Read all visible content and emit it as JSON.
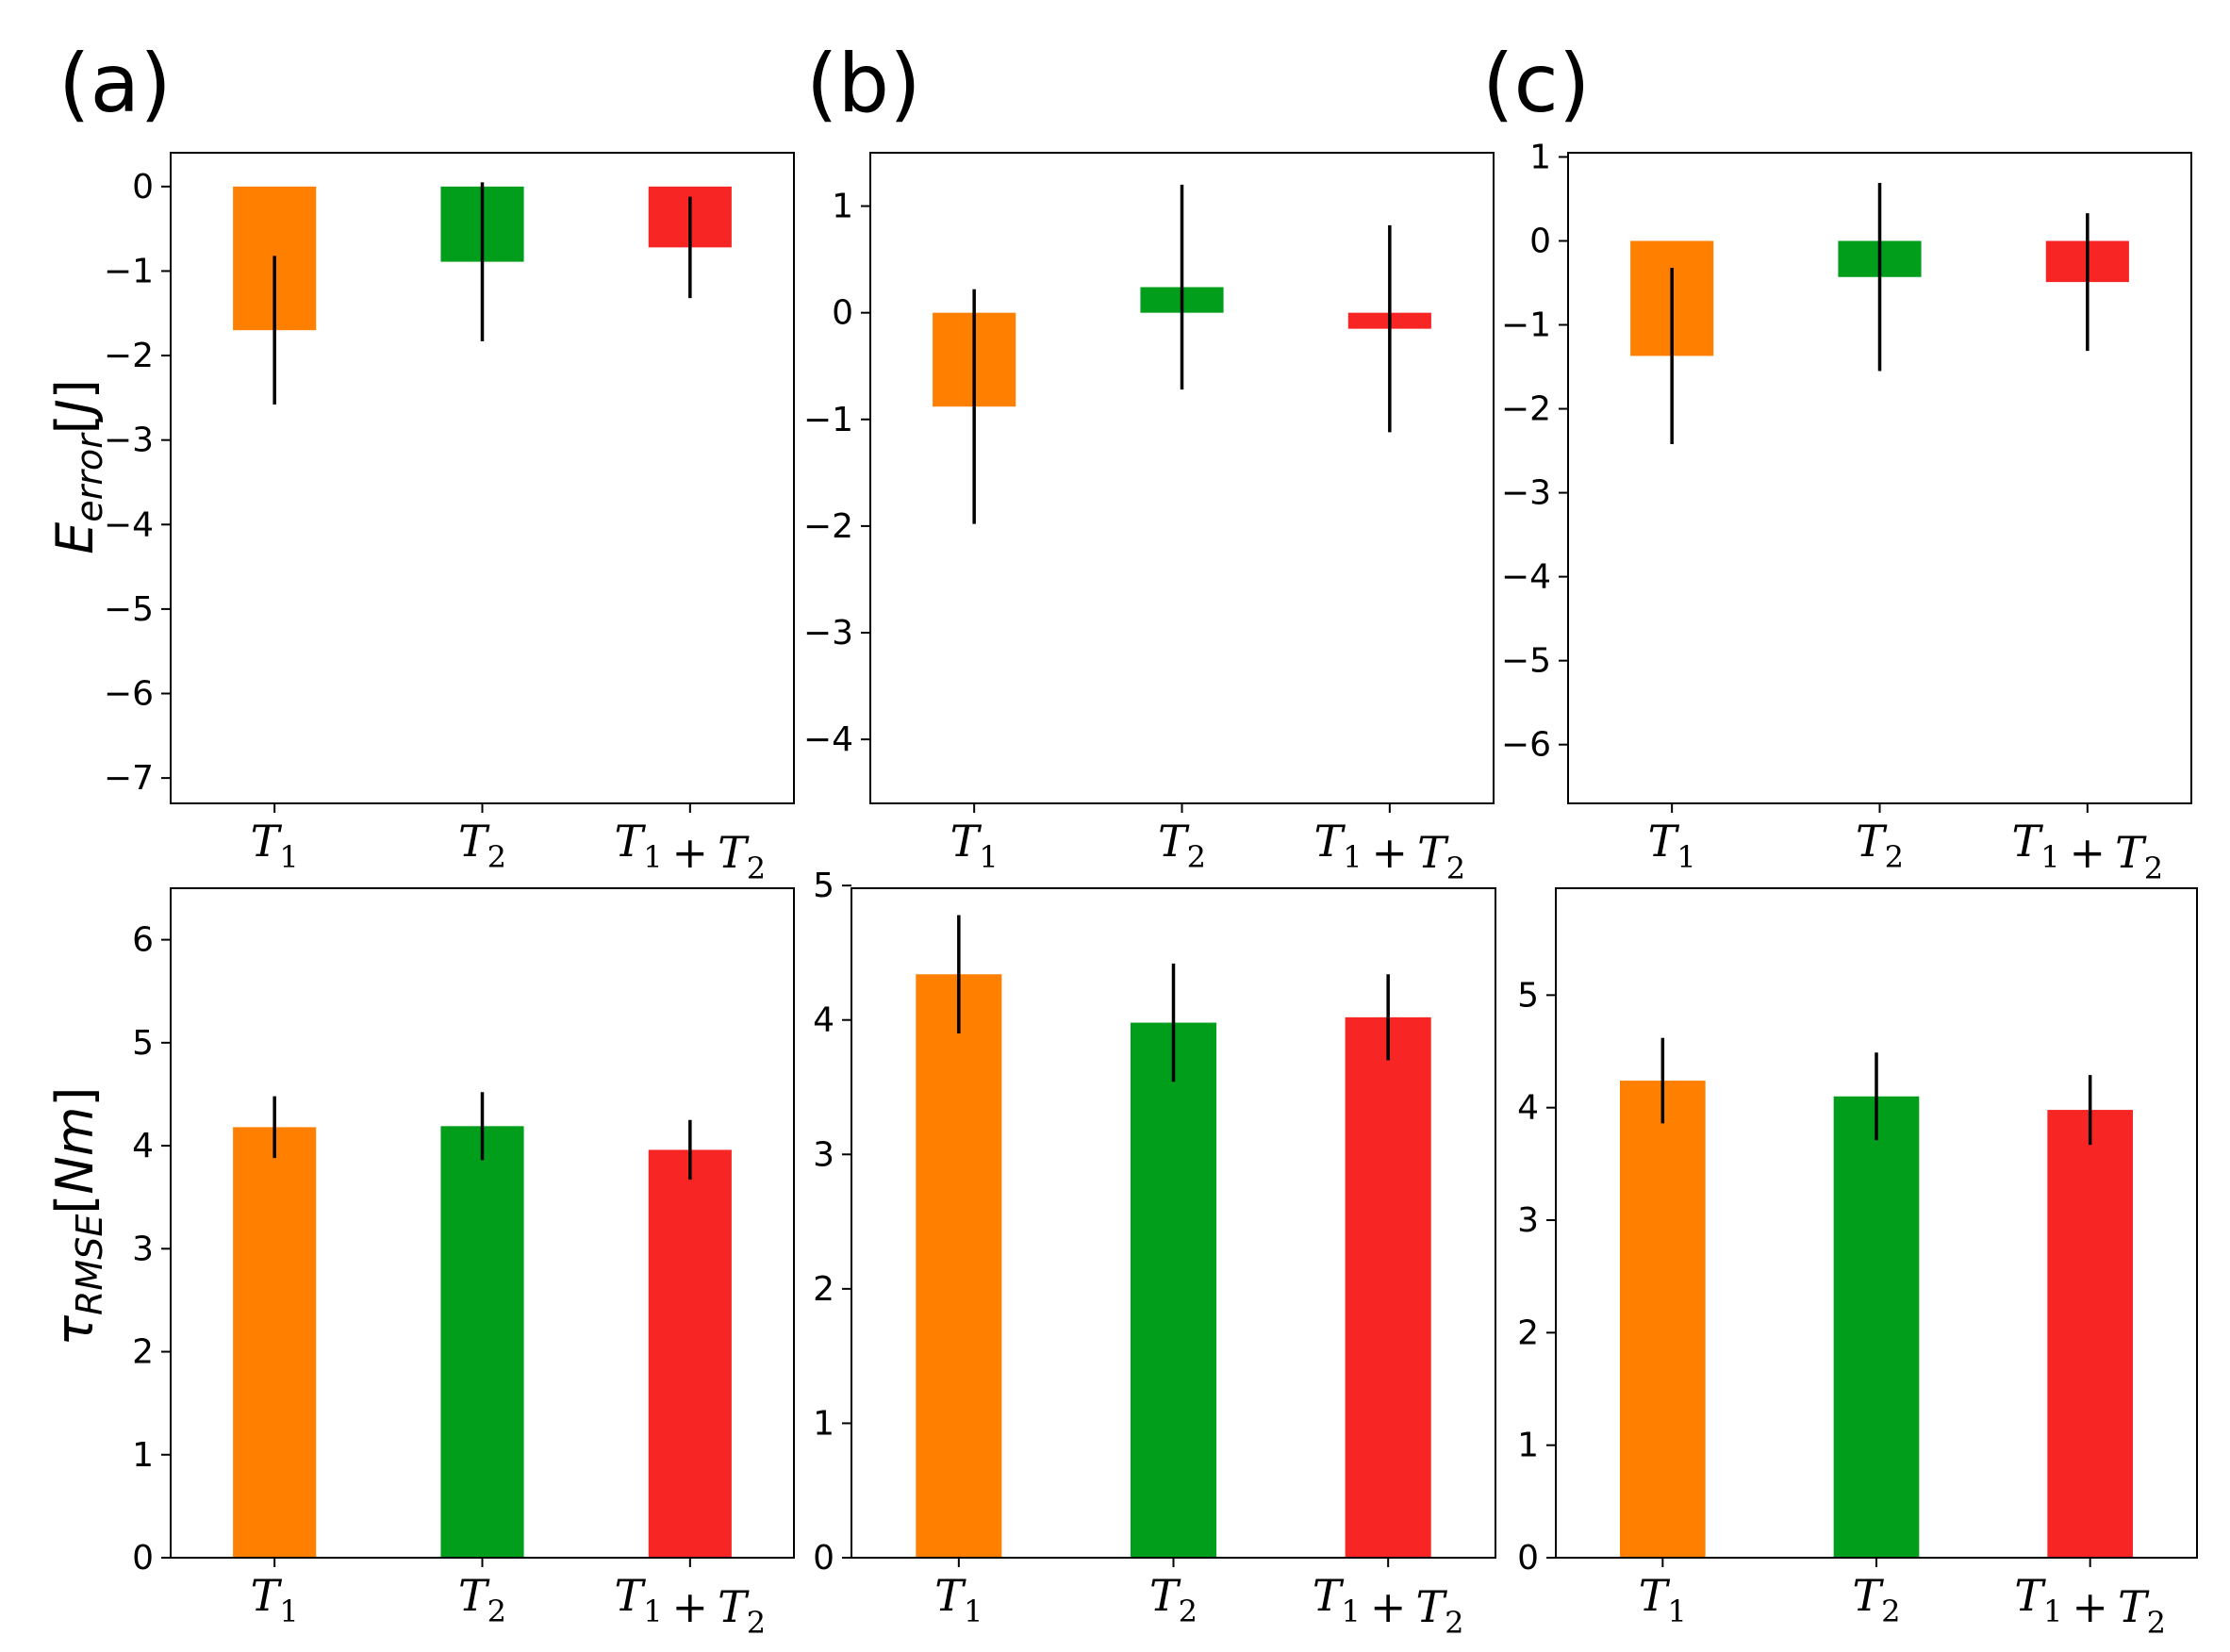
{
  "panel_labels": [
    "(a)",
    "(b)",
    "(c)"
  ],
  "y_labels": {
    "energy": {
      "main": "E",
      "sub": "error",
      "bracket_open": "[",
      "unit": "J",
      "bracket_close": "]"
    },
    "torque": {
      "main": "τ",
      "sub": "RMSE",
      "bracket_open": "[",
      "unit": "Nm",
      "bracket_close": "]"
    }
  },
  "colors": {
    "T1": "#ff7f00",
    "T2": "#009e1a",
    "T1+T2": "#f82525",
    "error_bar": "#000000"
  },
  "chart_data": [
    {
      "id": "a-energy",
      "type": "bar",
      "panel": "(a)",
      "ylabel": "E_error[J]",
      "categories": [
        "T1",
        "T2",
        "T1 + T2"
      ],
      "values": [
        -1.7,
        -0.89,
        -0.72
      ],
      "errors": [
        0.88,
        0.94,
        0.6
      ],
      "ylim": [
        -7.3,
        0.4
      ],
      "yticks": [
        -7,
        -6,
        -5,
        -4,
        -3,
        -2,
        -1,
        0
      ],
      "ytick_labels": [
        "−7",
        "−6",
        "−5",
        "−4",
        "−3",
        "−2",
        "−1",
        "0"
      ]
    },
    {
      "id": "b-energy",
      "type": "bar",
      "panel": "(b)",
      "ylabel": "",
      "categories": [
        "T1",
        "T2",
        "T1 + T2"
      ],
      "values": [
        -0.88,
        0.24,
        -0.15
      ],
      "errors": [
        1.1,
        0.96,
        0.97
      ],
      "ylim": [
        -4.6,
        1.5
      ],
      "yticks": [
        -4,
        -3,
        -2,
        -1,
        0,
        1
      ],
      "ytick_labels": [
        "−4",
        "−3",
        "−2",
        "−1",
        "0",
        "1"
      ]
    },
    {
      "id": "c-energy",
      "type": "bar",
      "panel": "(c)",
      "ylabel": "",
      "categories": [
        "T1",
        "T2",
        "T1 + T2"
      ],
      "values": [
        -1.37,
        -0.43,
        -0.49
      ],
      "errors": [
        1.05,
        1.12,
        0.82
      ],
      "ylim": [
        -6.7,
        1.05
      ],
      "yticks": [
        -6,
        -5,
        -4,
        -3,
        -2,
        -1,
        0,
        1
      ],
      "ytick_labels": [
        "−6",
        "−5",
        "−4",
        "−3",
        "−2",
        "−1",
        "0",
        "1"
      ]
    },
    {
      "id": "a-torque",
      "type": "bar",
      "panel": "(a)",
      "ylabel": "τ_RMSE[Nm]",
      "categories": [
        "T1",
        "T2",
        "T1 + T2"
      ],
      "values": [
        4.18,
        4.19,
        3.96
      ],
      "errors": [
        0.3,
        0.33,
        0.29
      ],
      "ylim": [
        0,
        6.5
      ],
      "yticks": [
        0,
        1,
        2,
        3,
        4,
        5,
        6
      ],
      "ytick_labels": [
        "0",
        "1",
        "2",
        "3",
        "4",
        "5",
        "6"
      ]
    },
    {
      "id": "b-torque",
      "type": "bar",
      "panel": "(b)",
      "ylabel": "",
      "categories": [
        "T1",
        "T2",
        "T1 + T2"
      ],
      "values": [
        4.34,
        3.98,
        4.02
      ],
      "errors": [
        0.44,
        0.44,
        0.32
      ],
      "ylim": [
        0,
        4.98
      ],
      "yticks": [
        0,
        1,
        2,
        3,
        4,
        5
      ],
      "ytick_labels": [
        "0",
        "1",
        "2",
        "3",
        "4",
        "5"
      ]
    },
    {
      "id": "c-torque",
      "type": "bar",
      "panel": "(c)",
      "ylabel": "",
      "categories": [
        "T1",
        "T2",
        "T1 + T2"
      ],
      "values": [
        4.24,
        4.1,
        3.98
      ],
      "errors": [
        0.38,
        0.39,
        0.31
      ],
      "ylim": [
        0,
        5.95
      ],
      "yticks": [
        0,
        1,
        2,
        3,
        4,
        5
      ],
      "ytick_labels": [
        "0",
        "1",
        "2",
        "3",
        "4",
        "5"
      ]
    }
  ]
}
